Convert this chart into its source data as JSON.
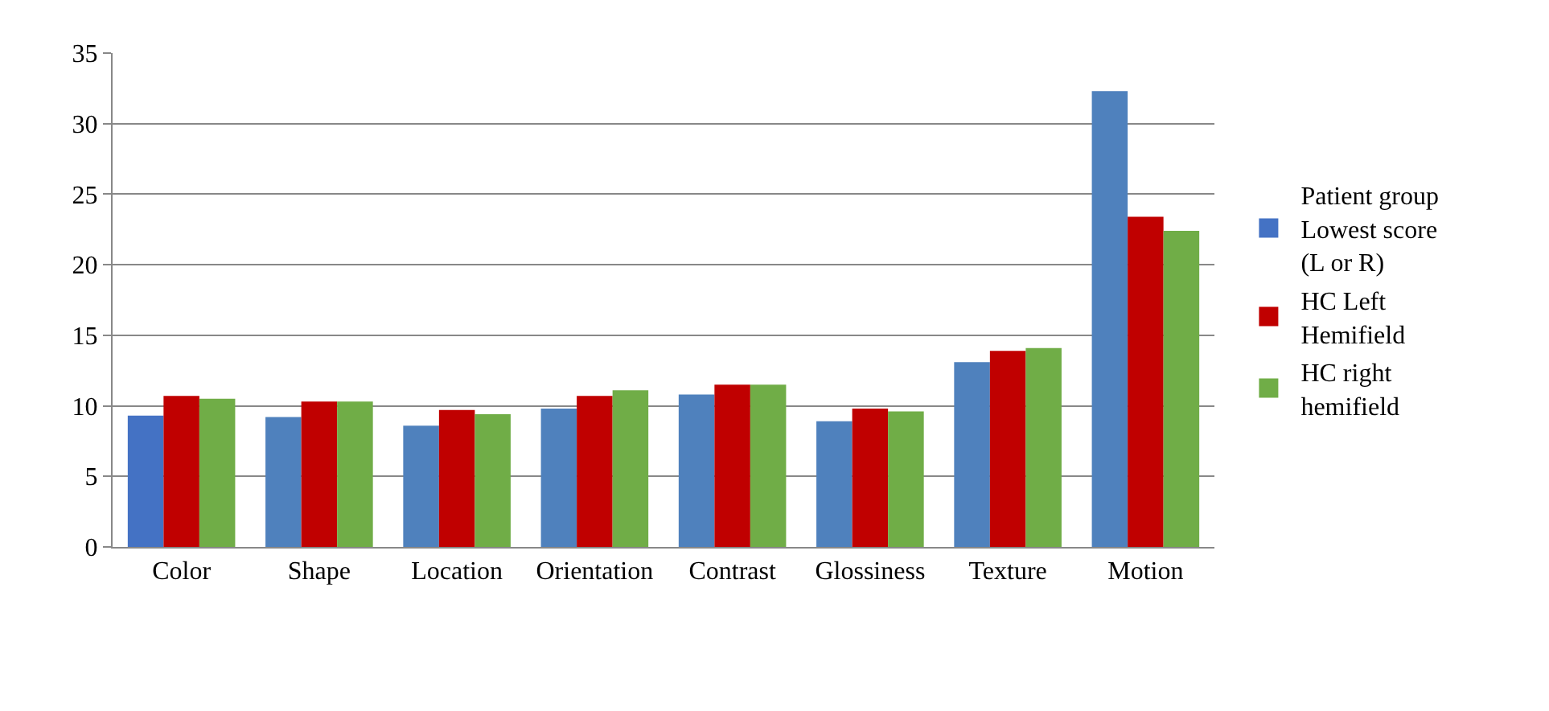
{
  "chart_data": {
    "type": "bar",
    "categories": [
      "Color",
      "Shape",
      "Location",
      "Orientation",
      "Contrast",
      "Glossiness",
      "Texture",
      "Motion"
    ],
    "series": [
      {
        "name": "Patient group Lowest score (L or R)",
        "color": "#4f81bd",
        "colors": [
          "#4472c4",
          "#4f81bd",
          "#4f81bd",
          "#4f81bd",
          "#4f81bd",
          "#4f81bd",
          "#4f81bd",
          "#4f81bd"
        ],
        "values": [
          9.3,
          9.2,
          8.6,
          9.8,
          10.8,
          8.9,
          13.1,
          32.3
        ]
      },
      {
        "name": "HC Left Hemifield",
        "color": "#c00000",
        "values": [
          10.7,
          10.3,
          9.7,
          10.7,
          11.5,
          9.8,
          13.9,
          23.4
        ]
      },
      {
        "name": "HC right hemifield",
        "color": "#70ad47",
        "values": [
          10.5,
          10.3,
          9.4,
          11.1,
          11.5,
          9.6,
          14.1,
          22.4
        ]
      }
    ],
    "ylim": [
      0,
      35
    ],
    "yticks": [
      0,
      5,
      10,
      15,
      20,
      25,
      30,
      35
    ],
    "grid": "y",
    "legend": "right"
  }
}
